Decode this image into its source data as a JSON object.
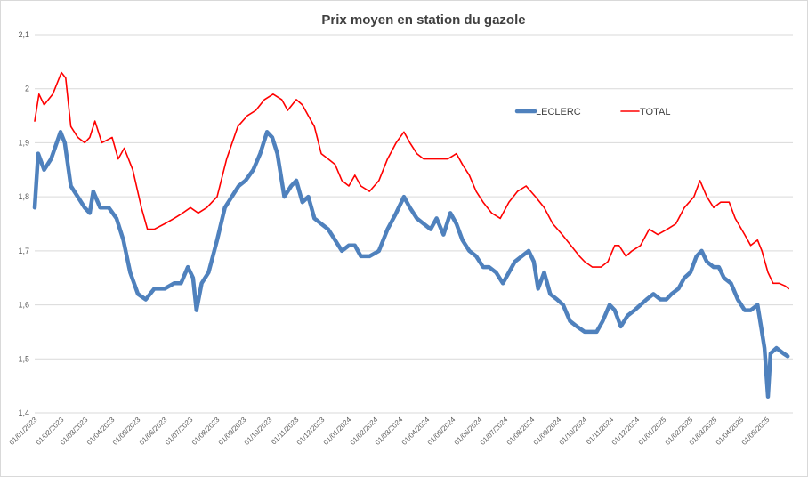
{
  "chart_data": {
    "type": "line",
    "title": "Prix moyen en station du gazole",
    "xlabel": "",
    "ylabel": "",
    "ylim": [
      1.4,
      2.1
    ],
    "yticks": [
      "1,4",
      "1,5",
      "1,6",
      "1,7",
      "1,8",
      "1,9",
      "2",
      "2,1"
    ],
    "xticks": [
      "01/01/2023",
      "01/02/2023",
      "01/03/2023",
      "01/04/2023",
      "01/05/2023",
      "01/06/2023",
      "01/07/2023",
      "01/08/2023",
      "01/09/2023",
      "01/10/2023",
      "01/11/2023",
      "01/12/2023",
      "01/01/2024",
      "01/02/2024",
      "01/03/2024",
      "01/04/2024",
      "01/05/2024",
      "01/06/2024",
      "01/07/2024",
      "01/08/2024",
      "01/09/2024",
      "01/10/2024",
      "01/11/2024",
      "01/12/2024",
      "01/01/2025",
      "01/02/2025",
      "01/03/2025",
      "01/04/2025",
      "01/05/2025"
    ],
    "grid": true,
    "legend_position": "top-right",
    "series": [
      {
        "name": "LECLERC",
        "color": "#4f81bd",
        "points": [
          [
            "2023-01-01",
            1.78
          ],
          [
            "2023-01-05",
            1.88
          ],
          [
            "2023-01-12",
            1.85
          ],
          [
            "2023-01-20",
            1.87
          ],
          [
            "2023-01-31",
            1.92
          ],
          [
            "2023-02-05",
            1.9
          ],
          [
            "2023-02-12",
            1.82
          ],
          [
            "2023-02-20",
            1.8
          ],
          [
            "2023-02-28",
            1.78
          ],
          [
            "2023-03-06",
            1.77
          ],
          [
            "2023-03-10",
            1.81
          ],
          [
            "2023-03-18",
            1.78
          ],
          [
            "2023-03-28",
            1.78
          ],
          [
            "2023-04-06",
            1.76
          ],
          [
            "2023-04-14",
            1.72
          ],
          [
            "2023-04-22",
            1.66
          ],
          [
            "2023-05-01",
            1.62
          ],
          [
            "2023-05-10",
            1.61
          ],
          [
            "2023-05-20",
            1.63
          ],
          [
            "2023-06-01",
            1.63
          ],
          [
            "2023-06-12",
            1.64
          ],
          [
            "2023-06-20",
            1.64
          ],
          [
            "2023-06-28",
            1.67
          ],
          [
            "2023-07-04",
            1.65
          ],
          [
            "2023-07-08",
            1.59
          ],
          [
            "2023-07-14",
            1.64
          ],
          [
            "2023-07-22",
            1.66
          ],
          [
            "2023-08-01",
            1.72
          ],
          [
            "2023-08-10",
            1.78
          ],
          [
            "2023-08-18",
            1.8
          ],
          [
            "2023-08-26",
            1.82
          ],
          [
            "2023-09-03",
            1.83
          ],
          [
            "2023-09-12",
            1.85
          ],
          [
            "2023-09-20",
            1.88
          ],
          [
            "2023-09-28",
            1.92
          ],
          [
            "2023-10-04",
            1.91
          ],
          [
            "2023-10-10",
            1.88
          ],
          [
            "2023-10-18",
            1.8
          ],
          [
            "2023-10-26",
            1.82
          ],
          [
            "2023-11-01",
            1.83
          ],
          [
            "2023-11-08",
            1.79
          ],
          [
            "2023-11-15",
            1.8
          ],
          [
            "2023-11-22",
            1.76
          ],
          [
            "2023-11-30",
            1.75
          ],
          [
            "2023-12-08",
            1.74
          ],
          [
            "2023-12-16",
            1.72
          ],
          [
            "2023-12-24",
            1.7
          ],
          [
            "2024-01-01",
            1.71
          ],
          [
            "2024-01-08",
            1.71
          ],
          [
            "2024-01-15",
            1.69
          ],
          [
            "2024-01-25",
            1.69
          ],
          [
            "2024-02-05",
            1.7
          ],
          [
            "2024-02-15",
            1.74
          ],
          [
            "2024-02-25",
            1.77
          ],
          [
            "2024-03-05",
            1.8
          ],
          [
            "2024-03-12",
            1.78
          ],
          [
            "2024-03-20",
            1.76
          ],
          [
            "2024-03-28",
            1.75
          ],
          [
            "2024-04-05",
            1.74
          ],
          [
            "2024-04-12",
            1.76
          ],
          [
            "2024-04-20",
            1.73
          ],
          [
            "2024-04-28",
            1.77
          ],
          [
            "2024-05-05",
            1.75
          ],
          [
            "2024-05-12",
            1.72
          ],
          [
            "2024-05-20",
            1.7
          ],
          [
            "2024-05-28",
            1.69
          ],
          [
            "2024-06-05",
            1.67
          ],
          [
            "2024-06-12",
            1.67
          ],
          [
            "2024-06-20",
            1.66
          ],
          [
            "2024-06-28",
            1.64
          ],
          [
            "2024-07-05",
            1.66
          ],
          [
            "2024-07-12",
            1.68
          ],
          [
            "2024-07-20",
            1.69
          ],
          [
            "2024-07-28",
            1.7
          ],
          [
            "2024-08-03",
            1.68
          ],
          [
            "2024-08-08",
            1.63
          ],
          [
            "2024-08-15",
            1.66
          ],
          [
            "2024-08-22",
            1.62
          ],
          [
            "2024-08-30",
            1.61
          ],
          [
            "2024-09-06",
            1.6
          ],
          [
            "2024-09-14",
            1.57
          ],
          [
            "2024-09-22",
            1.56
          ],
          [
            "2024-10-01",
            1.55
          ],
          [
            "2024-10-08",
            1.55
          ],
          [
            "2024-10-15",
            1.55
          ],
          [
            "2024-10-22",
            1.57
          ],
          [
            "2024-10-30",
            1.6
          ],
          [
            "2024-11-05",
            1.59
          ],
          [
            "2024-11-12",
            1.56
          ],
          [
            "2024-11-20",
            1.58
          ],
          [
            "2024-11-28",
            1.59
          ],
          [
            "2024-12-05",
            1.6
          ],
          [
            "2024-12-12",
            1.61
          ],
          [
            "2024-12-20",
            1.62
          ],
          [
            "2024-12-28",
            1.61
          ],
          [
            "2025-01-04",
            1.61
          ],
          [
            "2025-01-10",
            1.62
          ],
          [
            "2025-01-18",
            1.63
          ],
          [
            "2025-01-25",
            1.65
          ],
          [
            "2025-02-01",
            1.66
          ],
          [
            "2025-02-08",
            1.69
          ],
          [
            "2025-02-14",
            1.7
          ],
          [
            "2025-02-20",
            1.68
          ],
          [
            "2025-02-28",
            1.67
          ],
          [
            "2025-03-06",
            1.67
          ],
          [
            "2025-03-12",
            1.65
          ],
          [
            "2025-03-20",
            1.64
          ],
          [
            "2025-03-28",
            1.61
          ],
          [
            "2025-04-05",
            1.59
          ],
          [
            "2025-04-12",
            1.59
          ],
          [
            "2025-04-20",
            1.6
          ],
          [
            "2025-04-25",
            1.55
          ],
          [
            "2025-04-28",
            1.52
          ],
          [
            "2025-05-02",
            1.43
          ],
          [
            "2025-05-05",
            1.51
          ],
          [
            "2025-05-12",
            1.52
          ],
          [
            "2025-05-20",
            1.51
          ],
          [
            "2025-05-25",
            1.505
          ]
        ]
      },
      {
        "name": "TOTAL",
        "color": "#ff0000",
        "points": [
          [
            "2023-01-01",
            1.94
          ],
          [
            "2023-01-06",
            1.99
          ],
          [
            "2023-01-12",
            1.97
          ],
          [
            "2023-01-22",
            1.99
          ],
          [
            "2023-02-01",
            2.03
          ],
          [
            "2023-02-06",
            2.02
          ],
          [
            "2023-02-12",
            1.93
          ],
          [
            "2023-02-20",
            1.91
          ],
          [
            "2023-02-28",
            1.9
          ],
          [
            "2023-03-06",
            1.91
          ],
          [
            "2023-03-12",
            1.94
          ],
          [
            "2023-03-20",
            1.9
          ],
          [
            "2023-04-01",
            1.91
          ],
          [
            "2023-04-08",
            1.87
          ],
          [
            "2023-04-15",
            1.89
          ],
          [
            "2023-04-25",
            1.85
          ],
          [
            "2023-05-05",
            1.78
          ],
          [
            "2023-05-12",
            1.74
          ],
          [
            "2023-05-20",
            1.74
          ],
          [
            "2023-06-01",
            1.75
          ],
          [
            "2023-06-12",
            1.76
          ],
          [
            "2023-06-22",
            1.77
          ],
          [
            "2023-07-01",
            1.78
          ],
          [
            "2023-07-10",
            1.77
          ],
          [
            "2023-07-20",
            1.78
          ],
          [
            "2023-08-01",
            1.8
          ],
          [
            "2023-08-12",
            1.87
          ],
          [
            "2023-08-25",
            1.93
          ],
          [
            "2023-09-05",
            1.95
          ],
          [
            "2023-09-15",
            1.96
          ],
          [
            "2023-09-25",
            1.98
          ],
          [
            "2023-10-05",
            1.99
          ],
          [
            "2023-10-15",
            1.98
          ],
          [
            "2023-10-22",
            1.96
          ],
          [
            "2023-11-01",
            1.98
          ],
          [
            "2023-11-08",
            1.97
          ],
          [
            "2023-11-15",
            1.95
          ],
          [
            "2023-11-22",
            1.93
          ],
          [
            "2023-11-30",
            1.88
          ],
          [
            "2023-12-08",
            1.87
          ],
          [
            "2023-12-16",
            1.86
          ],
          [
            "2023-12-24",
            1.83
          ],
          [
            "2024-01-01",
            1.82
          ],
          [
            "2024-01-08",
            1.84
          ],
          [
            "2024-01-15",
            1.82
          ],
          [
            "2024-01-25",
            1.81
          ],
          [
            "2024-02-05",
            1.83
          ],
          [
            "2024-02-15",
            1.87
          ],
          [
            "2024-02-25",
            1.9
          ],
          [
            "2024-03-05",
            1.92
          ],
          [
            "2024-03-12",
            1.9
          ],
          [
            "2024-03-20",
            1.88
          ],
          [
            "2024-03-28",
            1.87
          ],
          [
            "2024-04-05",
            1.87
          ],
          [
            "2024-04-15",
            1.87
          ],
          [
            "2024-04-25",
            1.87
          ],
          [
            "2024-05-05",
            1.88
          ],
          [
            "2024-05-12",
            1.86
          ],
          [
            "2024-05-20",
            1.84
          ],
          [
            "2024-05-28",
            1.81
          ],
          [
            "2024-06-05",
            1.79
          ],
          [
            "2024-06-15",
            1.77
          ],
          [
            "2024-06-25",
            1.76
          ],
          [
            "2024-07-05",
            1.79
          ],
          [
            "2024-07-15",
            1.81
          ],
          [
            "2024-07-25",
            1.82
          ],
          [
            "2024-08-05",
            1.8
          ],
          [
            "2024-08-15",
            1.78
          ],
          [
            "2024-08-25",
            1.75
          ],
          [
            "2024-09-05",
            1.73
          ],
          [
            "2024-09-15",
            1.71
          ],
          [
            "2024-09-25",
            1.69
          ],
          [
            "2024-10-01",
            1.68
          ],
          [
            "2024-10-10",
            1.67
          ],
          [
            "2024-10-20",
            1.67
          ],
          [
            "2024-10-28",
            1.68
          ],
          [
            "2024-11-05",
            1.71
          ],
          [
            "2024-11-10",
            1.71
          ],
          [
            "2024-11-18",
            1.69
          ],
          [
            "2024-11-25",
            1.7
          ],
          [
            "2024-12-05",
            1.71
          ],
          [
            "2024-12-15",
            1.74
          ],
          [
            "2024-12-25",
            1.73
          ],
          [
            "2025-01-05",
            1.74
          ],
          [
            "2025-01-15",
            1.75
          ],
          [
            "2025-01-25",
            1.78
          ],
          [
            "2025-02-05",
            1.8
          ],
          [
            "2025-02-12",
            1.83
          ],
          [
            "2025-02-20",
            1.8
          ],
          [
            "2025-02-28",
            1.78
          ],
          [
            "2025-03-08",
            1.79
          ],
          [
            "2025-03-18",
            1.79
          ],
          [
            "2025-03-25",
            1.76
          ],
          [
            "2025-04-05",
            1.73
          ],
          [
            "2025-04-12",
            1.71
          ],
          [
            "2025-04-20",
            1.72
          ],
          [
            "2025-04-25",
            1.7
          ],
          [
            "2025-05-02",
            1.66
          ],
          [
            "2025-05-08",
            1.64
          ],
          [
            "2025-05-15",
            1.64
          ],
          [
            "2025-05-22",
            1.635
          ],
          [
            "2025-05-26",
            1.63
          ]
        ]
      }
    ]
  }
}
